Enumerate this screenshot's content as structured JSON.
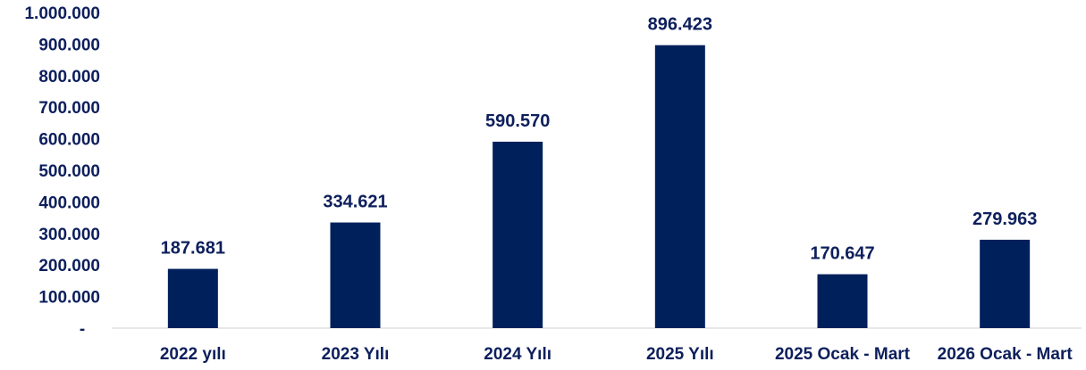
{
  "chart_data": {
    "type": "bar",
    "categories": [
      "2022 yılı",
      "2023 Yılı",
      "2024 Yılı",
      "2025 Yılı",
      "2025 Ocak - Mart",
      "2026 Ocak - Mart"
    ],
    "values": [
      187681,
      334621,
      590570,
      896423,
      170647,
      279963
    ],
    "data_labels": [
      "187.681",
      "334.621",
      "590.570",
      "896.423",
      "170.647",
      "279.963"
    ],
    "y_tick_labels": [
      "-",
      "100.000",
      "200.000",
      "300.000",
      "400.000",
      "500.000",
      "600.000",
      "700.000",
      "800.000",
      "900.000",
      "1.000.000"
    ],
    "ylim": [
      0,
      1000000
    ],
    "grid": false,
    "legend": "none",
    "colors": {
      "bar": "#00205b",
      "text": "#0d1f5c",
      "axis": "#d0d0d0"
    }
  }
}
